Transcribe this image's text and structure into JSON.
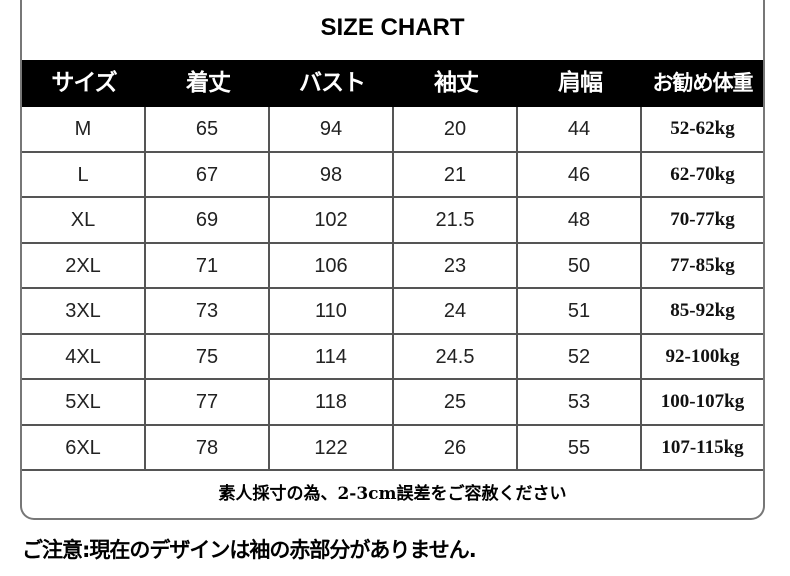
{
  "title": "SIZE CHART",
  "headers": [
    "サイズ",
    "着丈",
    "バスト",
    "袖丈",
    "肩幅",
    "お勧め体重"
  ],
  "rows": [
    [
      "M",
      "65",
      "94",
      "20",
      "44",
      "52-62kg"
    ],
    [
      "L",
      "67",
      "98",
      "21",
      "46",
      "62-70kg"
    ],
    [
      "XL",
      "69",
      "102",
      "21.5",
      "48",
      "70-77kg"
    ],
    [
      "2XL",
      "71",
      "106",
      "23",
      "50",
      "77-85kg"
    ],
    [
      "3XL",
      "73",
      "110",
      "24",
      "51",
      "85-92kg"
    ],
    [
      "4XL",
      "75",
      "114",
      "24.5",
      "52",
      "92-100kg"
    ],
    [
      "5XL",
      "77",
      "118",
      "25",
      "53",
      "100-107kg"
    ],
    [
      "6XL",
      "78",
      "122",
      "26",
      "55",
      "107-115kg"
    ]
  ],
  "footer": "素人採寸の為、2-3cm誤差をご容赦ください",
  "note": "ご注意:現在のデザインは袖の赤部分がありません."
}
